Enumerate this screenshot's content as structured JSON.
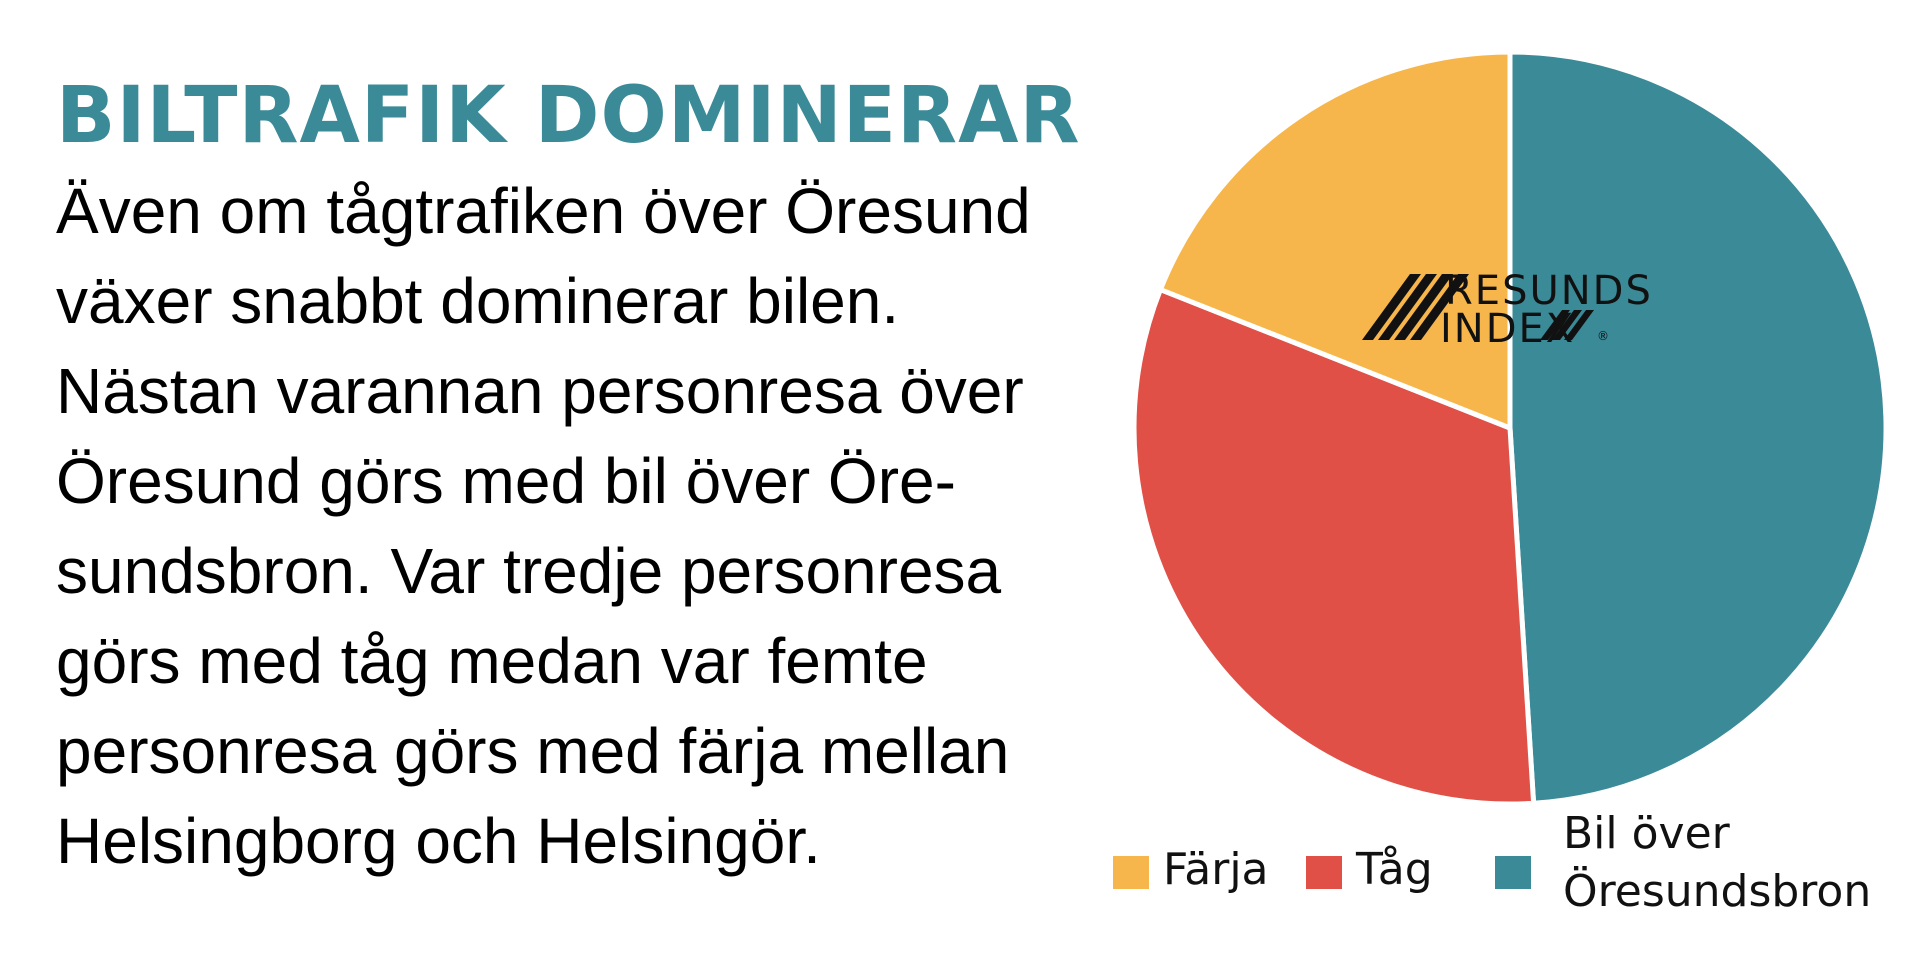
{
  "headline": "BILTRAFIK DOMINERAR",
  "body_lines": [
    "Även om tågtrafiken över Öresund",
    "växer snabbt dominerar bilen.",
    "Nästan varannan personresa över",
    "Öresund görs med bil över Öre-",
    "sundsbron. Var tredje personresa",
    "görs med tåg medan var femte",
    "personresa görs med färja mellan",
    "Helsingborg och Helsingör."
  ],
  "colors": {
    "headline": "#3a8a97",
    "farja": "#f7b64b",
    "tag": "#e05046",
    "bil": "#3a8a97",
    "separator": "#ffffff"
  },
  "logo": {
    "line1": "RESUNDS",
    "line2": "INDEX",
    "mark": "®"
  },
  "chart_data": {
    "type": "pie",
    "title": "",
    "start_angle_deg": 0,
    "direction": "clockwise",
    "slices": [
      {
        "label": "Bil över Öresundsbron",
        "legend_lines": [
          "Bil över",
          "Öresundsbron"
        ],
        "value": 49,
        "color": "#3a8a97"
      },
      {
        "label": "Tåg",
        "legend_lines": [
          "Tåg"
        ],
        "value": 32,
        "color": "#e05046"
      },
      {
        "label": "Färja",
        "legend_lines": [
          "Färja"
        ],
        "value": 19,
        "color": "#f7b64b"
      }
    ],
    "legend": {
      "placement": "bottom",
      "order": [
        "Färja",
        "Tåg",
        "Bil över Öresundsbron"
      ]
    }
  }
}
